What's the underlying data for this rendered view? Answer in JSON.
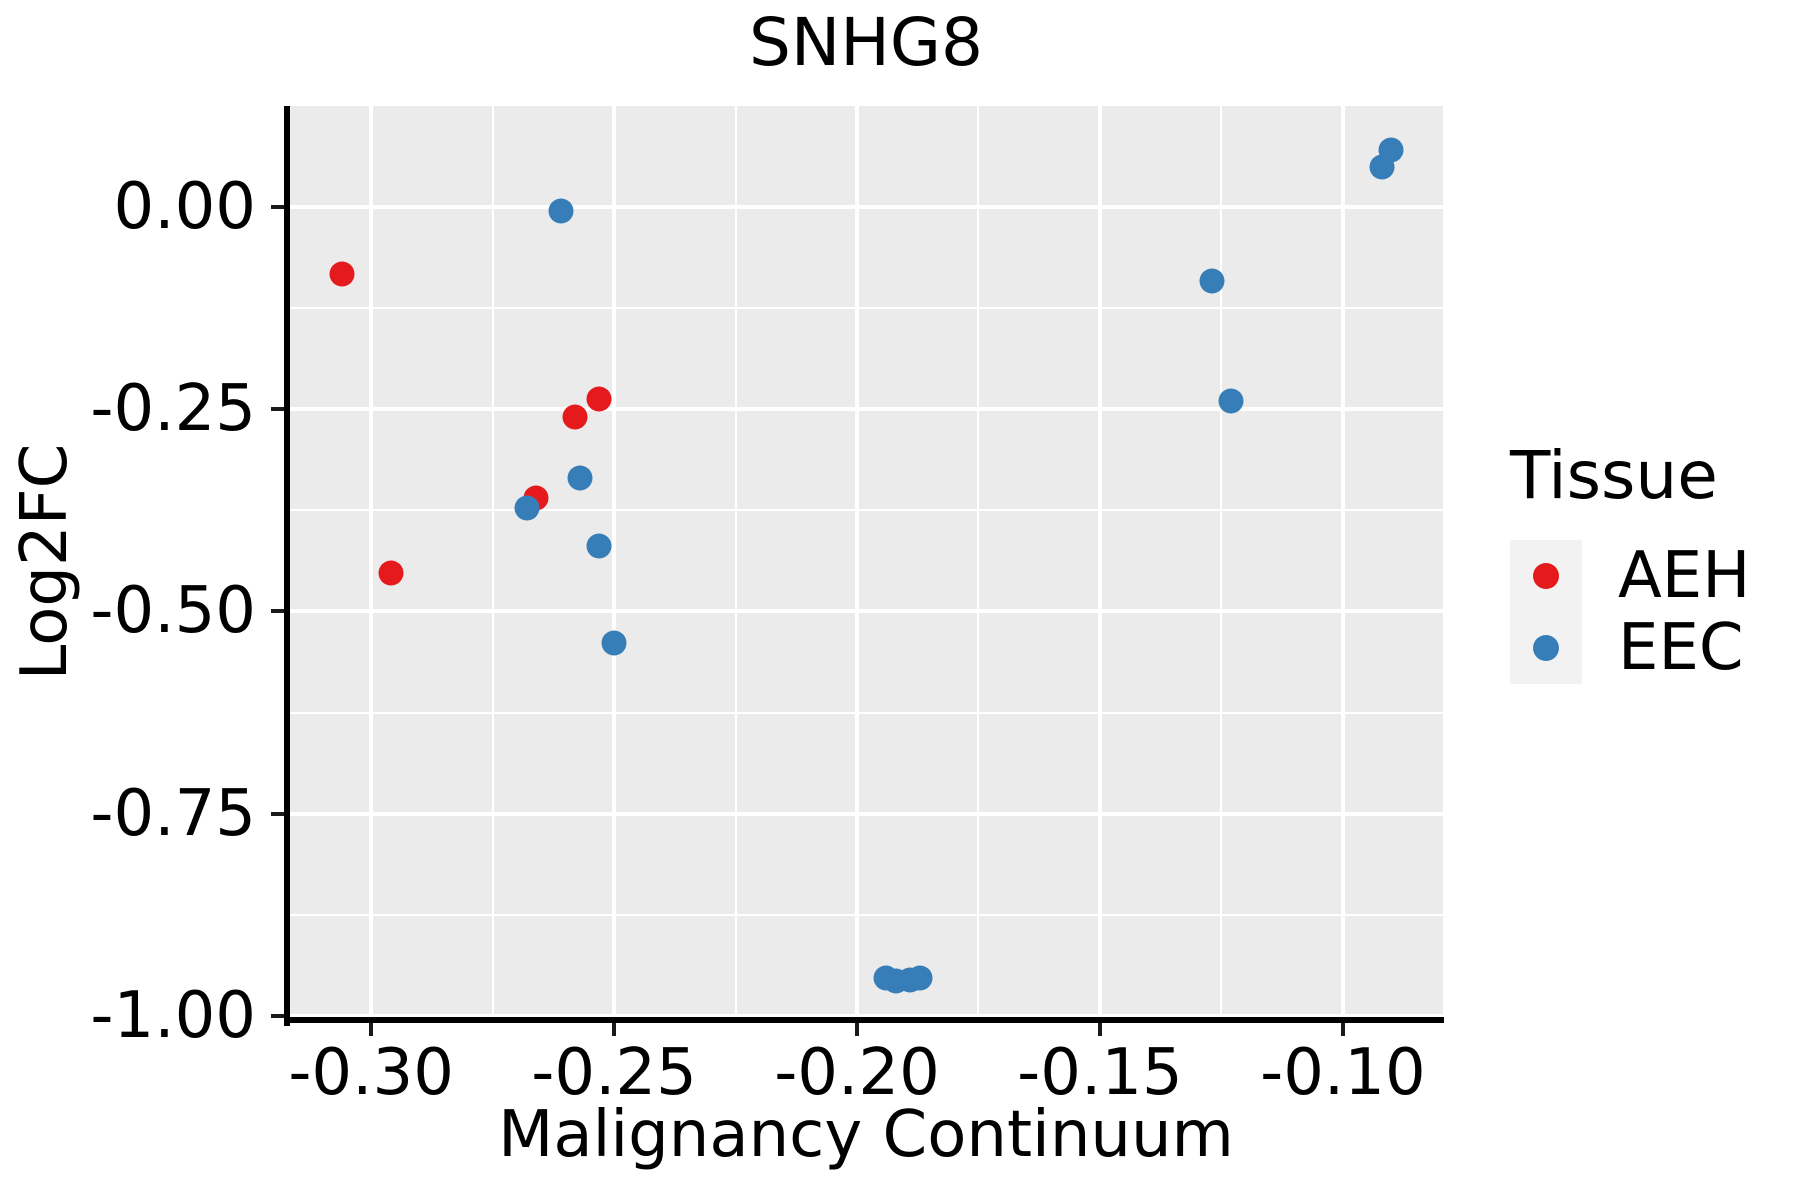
{
  "chart_data": {
    "type": "scatter",
    "title": "SNHG8",
    "xlabel": "Malignancy Continuum",
    "ylabel": "Log2FC",
    "xlim": [
      -0.3169,
      -0.0794
    ],
    "ylim": [
      -1.0045,
      0.1241
    ],
    "x_ticks": [
      -0.3,
      -0.25,
      -0.2,
      -0.15,
      -0.1
    ],
    "x_tick_labels": [
      "-0.30",
      "-0.25",
      "-0.20",
      "-0.15",
      "-0.10"
    ],
    "y_ticks": [
      0.0,
      -0.25,
      -0.5,
      -0.75,
      -1.0
    ],
    "y_tick_labels": [
      "0.00",
      "-0.25",
      "-0.50",
      "-0.75",
      "-1.00"
    ],
    "x_minor_ticks": [
      -0.275,
      -0.225,
      -0.175,
      -0.125
    ],
    "y_minor_ticks": [
      -0.125,
      -0.375,
      -0.625,
      -0.875
    ],
    "grid": true,
    "legend": {
      "title": "Tissue",
      "position": "right",
      "entries": [
        {
          "label": "AEH",
          "color": "#E41A1C"
        },
        {
          "label": "EEC",
          "color": "#377EB8"
        }
      ]
    },
    "series": [
      {
        "name": "AEH",
        "color": "#E41A1C",
        "points": [
          [
            -0.306,
            -0.083
          ],
          [
            -0.253,
            -0.238
          ],
          [
            -0.258,
            -0.26
          ],
          [
            -0.266,
            -0.36
          ],
          [
            -0.296,
            -0.453
          ]
        ]
      },
      {
        "name": "EEC",
        "color": "#377EB8",
        "points": [
          [
            -0.261,
            -0.006
          ],
          [
            -0.092,
            0.049
          ],
          [
            -0.09,
            0.07
          ],
          [
            -0.127,
            -0.092
          ],
          [
            -0.123,
            -0.24
          ],
          [
            -0.257,
            -0.335
          ],
          [
            -0.268,
            -0.372
          ],
          [
            -0.253,
            -0.419
          ],
          [
            -0.25,
            -0.539
          ],
          [
            -0.194,
            -0.953
          ],
          [
            -0.192,
            -0.956
          ],
          [
            -0.189,
            -0.955
          ],
          [
            -0.187,
            -0.953
          ]
        ]
      }
    ],
    "colors": {
      "panel_bg": "#EBEBEB",
      "grid": "#FFFFFF",
      "axis_line": "#000000",
      "text": "#000000",
      "legend_key_bg": "#F2F2F2"
    }
  }
}
